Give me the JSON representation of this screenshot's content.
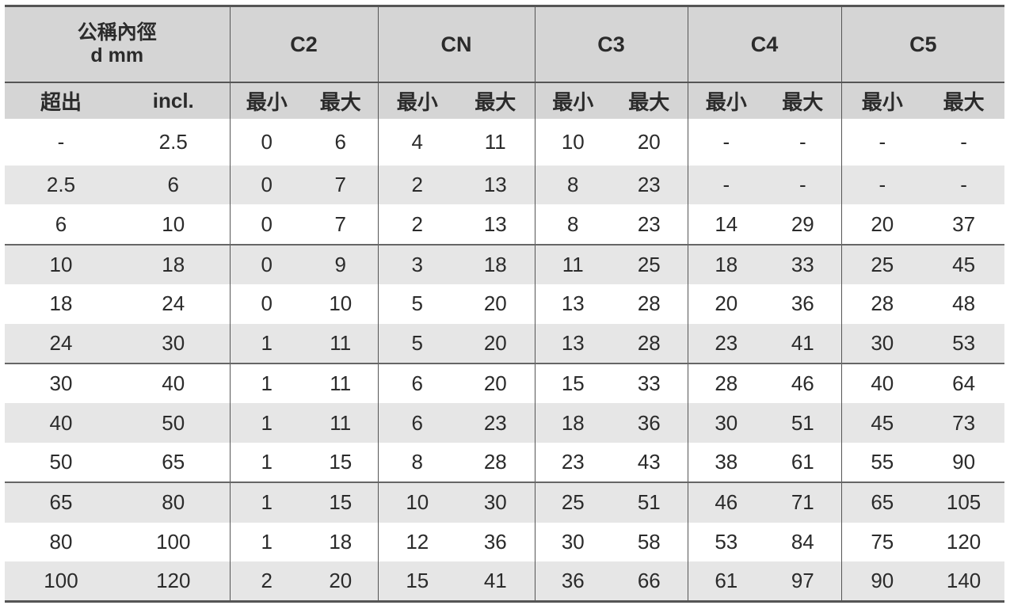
{
  "header": {
    "bore_label_line1": "公稱內徑",
    "bore_label_line2": "d mm",
    "over_label": "超出",
    "incl_label": "incl.",
    "min_label": "最小",
    "max_label": "最大",
    "groups": [
      "C2",
      "CN",
      "C3",
      "C4",
      "C5"
    ]
  },
  "rows": [
    [
      "-",
      "2.5",
      "0",
      "6",
      "4",
      "11",
      "10",
      "20",
      "-",
      "-",
      "-",
      "-"
    ],
    [
      "2.5",
      "6",
      "0",
      "7",
      "2",
      "13",
      "8",
      "23",
      "-",
      "-",
      "-",
      "-"
    ],
    [
      "6",
      "10",
      "0",
      "7",
      "2",
      "13",
      "8",
      "23",
      "14",
      "29",
      "20",
      "37"
    ],
    [
      "10",
      "18",
      "0",
      "9",
      "3",
      "18",
      "11",
      "25",
      "18",
      "33",
      "25",
      "45"
    ],
    [
      "18",
      "24",
      "0",
      "10",
      "5",
      "20",
      "13",
      "28",
      "20",
      "36",
      "28",
      "48"
    ],
    [
      "24",
      "30",
      "1",
      "11",
      "5",
      "20",
      "13",
      "28",
      "23",
      "41",
      "30",
      "53"
    ],
    [
      "30",
      "40",
      "1",
      "11",
      "6",
      "20",
      "15",
      "33",
      "28",
      "46",
      "40",
      "64"
    ],
    [
      "40",
      "50",
      "1",
      "11",
      "6",
      "23",
      "18",
      "36",
      "30",
      "51",
      "45",
      "73"
    ],
    [
      "50",
      "65",
      "1",
      "15",
      "8",
      "28",
      "23",
      "43",
      "38",
      "61",
      "55",
      "90"
    ],
    [
      "65",
      "80",
      "1",
      "15",
      "10",
      "30",
      "25",
      "51",
      "46",
      "71",
      "65",
      "105"
    ],
    [
      "80",
      "100",
      "1",
      "18",
      "12",
      "36",
      "30",
      "58",
      "53",
      "84",
      "75",
      "120"
    ],
    [
      "100",
      "120",
      "2",
      "20",
      "15",
      "41",
      "36",
      "66",
      "61",
      "97",
      "90",
      "140"
    ]
  ]
}
